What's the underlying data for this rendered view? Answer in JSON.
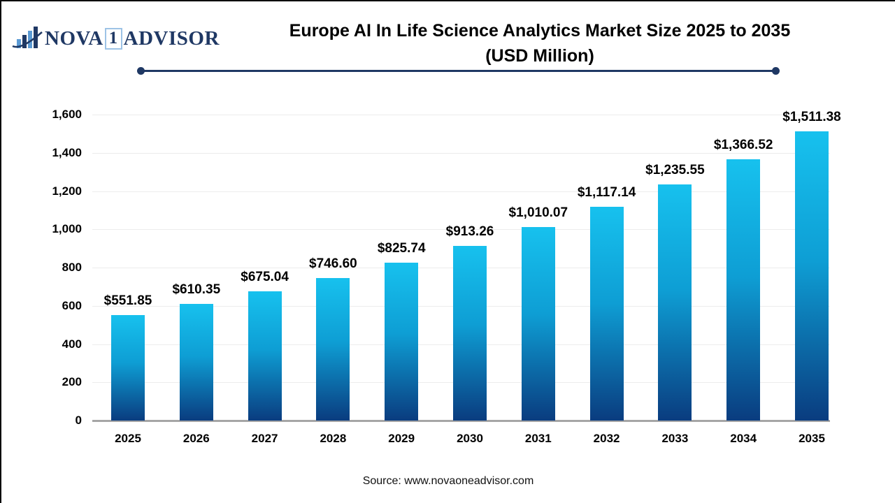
{
  "logo": {
    "nova": "NOVA",
    "one": "1",
    "advisor": "ADVISOR"
  },
  "header": {
    "title_line1": "Europe AI In Life Science Analytics Market Size 2025 to 2035",
    "title_line2": "(USD Million)"
  },
  "footer": {
    "source": "Source: www.novaoneadvisor.com"
  },
  "colors": {
    "bar_gradient_top": "#17C1EE",
    "bar_gradient_bottom": "#0A3C7F",
    "navy_accent": "#1F3864",
    "gridline": "#ECECEC",
    "axis_baseline": "#A6A6A6",
    "text": "#000000"
  },
  "chart_data": {
    "type": "bar",
    "title": "Europe AI In Life Science Analytics Market Size 2025 to 2035 (USD Million)",
    "xlabel": "",
    "ylabel": "",
    "categories": [
      "2025",
      "2026",
      "2027",
      "2028",
      "2029",
      "2030",
      "2031",
      "2032",
      "2033",
      "2034",
      "2035"
    ],
    "values": [
      551.85,
      610.35,
      675.04,
      746.6,
      825.74,
      913.26,
      1010.07,
      1117.14,
      1235.55,
      1366.52,
      1511.38
    ],
    "value_labels": [
      "$551.85",
      "$610.35",
      "$675.04",
      "$746.60",
      "$825.74",
      "$913.26",
      "$1,010.07",
      "$1,117.14",
      "$1,235.55",
      "$1,366.52",
      "$1,511.38"
    ],
    "ylim": [
      0,
      1600
    ],
    "yticks": [
      0,
      200,
      400,
      600,
      800,
      1000,
      1200,
      1400,
      1600
    ],
    "grid": true,
    "legend": false,
    "bar_count": 11
  }
}
